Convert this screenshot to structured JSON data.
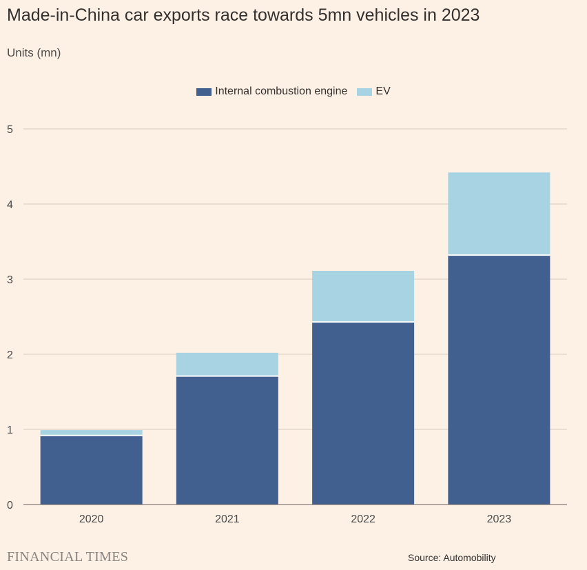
{
  "title": "Made-in-China car exports race towards 5mn vehicles in 2023",
  "units_label": "Units (mn)",
  "legend": [
    {
      "label": "Internal combustion engine",
      "color": "#41608f"
    },
    {
      "label": "EV",
      "color": "#a7d3e3"
    }
  ],
  "source": "Source: Automobility",
  "brand": "FINANCIAL TIMES",
  "chart_data": {
    "type": "bar",
    "stacked": true,
    "title": "Made-in-China car exports race towards 5mn vehicles in 2023",
    "xlabel": "",
    "ylabel": "Units (mn)",
    "ylim": [
      0,
      5
    ],
    "yticks": [
      0,
      1,
      2,
      3,
      4,
      5
    ],
    "categories": [
      "2020",
      "2021",
      "2022",
      "2023"
    ],
    "series": [
      {
        "name": "Internal combustion engine",
        "color": "#41608f",
        "values": [
          0.92,
          1.71,
          2.43,
          3.32
        ]
      },
      {
        "name": "EV",
        "color": "#a7d3e3",
        "values": [
          0.07,
          0.31,
          0.68,
          1.1
        ]
      }
    ],
    "legend_position": "top-center",
    "grid": true
  }
}
